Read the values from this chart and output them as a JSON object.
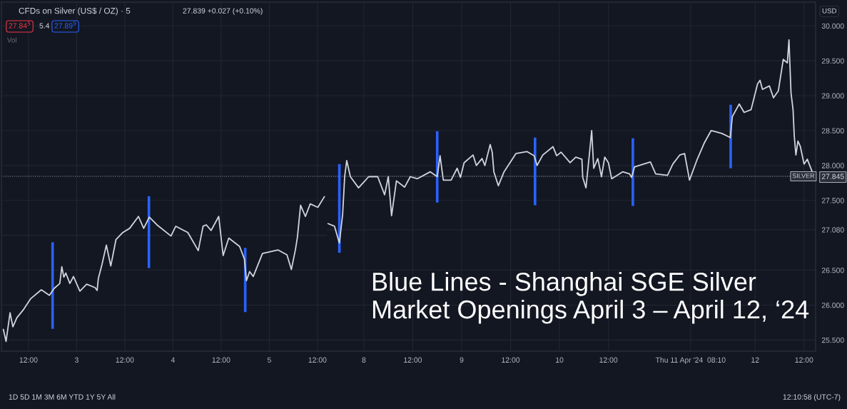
{
  "chart_data": [
    {
      "type": "line",
      "title": "CFDs on Silver (US$ / OZ) · 5",
      "annotations": [
        "27.839 +0.027 (+0.10%)",
        "27.84$^{5}$",
        "5.4",
        "27.89$^{9}$",
        "Vol",
        "1D 5D 1M 3M 6M YTD 1Y 5Y All"
      ],
      "xlim": [
        "2024-04-02T05:15",
        "2024-04-05T14:20"
      ],
      "xticks": [
        {
          "value": "2024-04-02T12:00",
          "label": "12:00"
        },
        {
          "value": "2024-04-03",
          "label": "3"
        },
        {
          "value": "2024-04-03T12:00",
          "label": "12:00"
        },
        {
          "value": "2024-04-04",
          "label": "4"
        },
        {
          "value": "2024-04-04T12:00",
          "label": "12:00"
        },
        {
          "value": "2024-04-05",
          "label": "5"
        },
        {
          "value": "2024-04-05T12:00",
          "label": "12:00"
        }
      ],
      "ylim": [
        25.34,
        30.34
      ],
      "yticks": [
        25.5,
        26,
        26.5,
        27,
        27.5,
        28,
        28.5,
        29,
        29.5,
        30
      ],
      "tick_labels": "x",
      "grid": true,
      "ref_lines": [
        {
          "axis": "y",
          "value": 27.845,
          "line_style": "dotted",
          "color": "#9598a1"
        }
      ],
      "series": [
        {
          "color": "#d1d4dc",
          "x": [
            "2024-04-02T05:42",
            "2024-04-02T06:24",
            "2024-04-02T07:24",
            "2024-04-02T08:06",
            "2024-04-02T09:06",
            "2024-04-02T10:48",
            "2024-04-02T12:30",
            "2024-04-02T15:12",
            "2024-04-02T17:12",
            "2024-04-02T18:24",
            "2024-04-02T19:48",
            "2024-04-02T20:18",
            "2024-04-02T20:48",
            "2024-04-02T21:18",
            "2024-04-02T22:18",
            "2024-04-02T23:12",
            "2024-04-03T00:48",
            "2024-04-03T02:30",
            "2024-04-03T04:36",
            "2024-04-03T05:06",
            "2024-04-03T05:24",
            "2024-04-03T06:18",
            "2024-04-03T07:24",
            "2024-04-03T08:30",
            "2024-04-03T09:48",
            "2024-04-03T11:30",
            "2024-04-03T13:12",
            "2024-04-03T15:24",
            "2024-04-03T16:42",
            "2024-04-03T18:06",
            "2024-04-03T20:00",
            "2024-04-03T23:30",
            "2024-04-04T00:42",
            "2024-04-04T03:42",
            "2024-04-04T06:18",
            "2024-04-04T07:30",
            "2024-04-04T08:18",
            "2024-04-04T09:30",
            "2024-04-04T11:24",
            "2024-04-04T12:30",
            "2024-04-04T13:54",
            "2024-04-04T16:36",
            "2024-04-04T17:48",
            "2024-04-04T18:18",
            "2024-04-04T19:06",
            "2024-04-04T20:00",
            "2024-04-04T22:18",
            "2024-04-05T02:12",
            "2024-04-05T04:24",
            "2024-04-05T05:30",
            "2024-04-05T06:30",
            "2024-04-05T07:00",
            "2024-04-05T07:48",
            "2024-04-05T09:00",
            "2024-04-05T10:12",
            "2024-04-05T12:06",
            "2024-04-05T13:48"
          ],
          "values": [
            25.66,
            25.48,
            25.89,
            25.69,
            25.82,
            25.94,
            26.09,
            26.22,
            26.14,
            26.24,
            26.31,
            26.55,
            26.4,
            26.46,
            26.31,
            26.41,
            26.2,
            26.3,
            26.25,
            26.21,
            26.38,
            26.58,
            26.86,
            26.56,
            26.94,
            27.04,
            27.1,
            27.27,
            27.1,
            27.26,
            27.15,
            26.99,
            27.13,
            27.04,
            26.78,
            27.13,
            27.15,
            27.07,
            27.27,
            26.71,
            26.96,
            26.84,
            26.66,
            26.35,
            26.48,
            26.41,
            26.74,
            26.79,
            26.72,
            26.51,
            26.79,
            26.97,
            27.43,
            27.27,
            27.45,
            27.4,
            27.56
          ]
        },
        {
          "color": "#2962ff",
          "x": [
            "2024-04-02T18:00",
            "2024-04-02T18:00"
          ],
          "values": [
            25.66,
            26.9
          ]
        },
        {
          "color": "#2962ff",
          "x": [
            "2024-04-03T18:00",
            "2024-04-03T18:00"
          ],
          "values": [
            26.53,
            27.56
          ]
        },
        {
          "color": "#2962ff",
          "x": [
            "2024-04-04T18:00",
            "2024-04-04T18:00"
          ],
          "values": [
            25.9,
            26.82
          ]
        }
      ]
    },
    {
      "type": "line",
      "annotations": [
        "Blue Lines - Shanghai SGE Silver\nMarket Openings April 3 – April 12, ‘24",
        "USD",
        "12:10:58 (UTC-7)"
      ],
      "xlim": [
        "2024-04-07T14:55",
        "2024-04-12T14:50"
      ],
      "xticks": [
        {
          "value": "2024-04-08",
          "label": "8"
        },
        {
          "value": "2024-04-08T12:00",
          "label": "12:00"
        },
        {
          "value": "2024-04-09",
          "label": "9"
        },
        {
          "value": "2024-04-09T12:00",
          "label": "12:00"
        },
        {
          "value": "2024-04-10",
          "label": "10"
        },
        {
          "value": "2024-04-10T12:00",
          "label": "12:00"
        },
        {
          "value": "2024-04-11T08:10",
          "label": "Thu 11 Apr '24  08:10"
        },
        {
          "value": "2024-04-12",
          "label": "12"
        },
        {
          "value": "2024-04-12T12:00",
          "label": "12:00"
        }
      ],
      "ylim": [
        25.34,
        30.34
      ],
      "yticks": [
        {
          "value": 25.5,
          "label": "25.500"
        },
        {
          "value": 26,
          "label": "26.000"
        },
        {
          "value": 26.5,
          "label": "26.500"
        },
        {
          "value": 27.08,
          "label": "27.080"
        },
        {
          "value": 27.5,
          "label": "27.500"
        },
        {
          "value": 27.845,
          "label": "27.845"
        },
        {
          "value": 28,
          "label": "28.000"
        },
        {
          "value": 28.5,
          "label": "28.500"
        },
        {
          "value": 29,
          "label": "29.000"
        },
        {
          "value": 29.5,
          "label": "29.500"
        },
        {
          "value": 30,
          "label": "30.000"
        }
      ],
      "grid": true,
      "ref_lines": [
        {
          "axis": "y",
          "value": 27.845,
          "label": "SILVER",
          "line_style": "dotted",
          "color": "#9598a1"
        }
      ],
      "series": [
        {
          "color": "#d1d4dc",
          "x": [
            "2024-04-07T15:06",
            "2024-04-07T16:48",
            "2024-04-07T18:00",
            "2024-04-07T18:48",
            "2024-04-07T19:18",
            "2024-04-07T19:48",
            "2024-04-07T20:42",
            "2024-04-07T22:42",
            "2024-04-08T01:12",
            "2024-04-08T03:24",
            "2024-04-08T05:06",
            "2024-04-08T06:00",
            "2024-04-08T06:48",
            "2024-04-08T08:00",
            "2024-04-08T10:00",
            "2024-04-08T11:24",
            "2024-04-08T13:06",
            "2024-04-08T16:18",
            "2024-04-08T18:00",
            "2024-04-08T18:42",
            "2024-04-08T19:30",
            "2024-04-08T21:24",
            "2024-04-08T22:54",
            "2024-04-08T23:42",
            "2024-04-09T00:36",
            "2024-04-09T02:48",
            "2024-04-09T03:36",
            "2024-04-09T05:00",
            "2024-04-09T05:42",
            "2024-04-09T07:00",
            "2024-04-09T07:30",
            "2024-04-09T07:54",
            "2024-04-09T09:00",
            "2024-04-09T10:24",
            "2024-04-09T13:18",
            "2024-04-09T16:00",
            "2024-04-09T17:48",
            "2024-04-09T18:30",
            "2024-04-09T19:54",
            "2024-04-09T22:24",
            "2024-04-09T23:18",
            "2024-04-10T00:24",
            "2024-04-10T02:36",
            "2024-04-10T04:00",
            "2024-04-10T05:30",
            "2024-04-10T05:42",
            "2024-04-10T06:30",
            "2024-04-10T07:24",
            "2024-04-10T07:54",
            "2024-04-10T08:24",
            "2024-04-10T09:24",
            "2024-04-10T10:18",
            "2024-04-10T11:06",
            "2024-04-10T12:00",
            "2024-04-10T12:48",
            "2024-04-10T15:30",
            "2024-04-10T17:12",
            "2024-04-10T17:42",
            "2024-04-10T18:24",
            "2024-04-10T22:18",
            "2024-04-10T23:36",
            "2024-04-11T02:30",
            "2024-04-11T03:48",
            "2024-04-11T05:30",
            "2024-04-11T06:42",
            "2024-04-11T07:54",
            "2024-04-11T09:48",
            "2024-04-11T11:30",
            "2024-04-11T13:12",
            "2024-04-11T15:48",
            "2024-04-11T17:54",
            "2024-04-11T18:24",
            "2024-04-11T20:06",
            "2024-04-11T21:18",
            "2024-04-11T23:00",
            "2024-04-12T00:36",
            "2024-04-12T01:12",
            "2024-04-12T01:48",
            "2024-04-12T03:30",
            "2024-04-12T04:30",
            "2024-04-12T05:42",
            "2024-04-12T06:54",
            "2024-04-12T07:54",
            "2024-04-12T08:18",
            "2024-04-12T08:48",
            "2024-04-12T09:18",
            "2024-04-12T09:36",
            "2024-04-12T10:00",
            "2024-04-12T10:30",
            "2024-04-12T11:06",
            "2024-04-12T12:00",
            "2024-04-12T12:48",
            "2024-04-12T14:00"
          ],
          "values": [
            27.17,
            27.13,
            26.89,
            27.3,
            27.84,
            28.07,
            27.84,
            27.68,
            27.84,
            27.84,
            27.58,
            27.84,
            27.28,
            27.78,
            27.69,
            27.84,
            27.81,
            27.91,
            27.84,
            28.14,
            27.79,
            27.79,
            27.96,
            27.83,
            28.04,
            28.15,
            28.0,
            28.1,
            28.0,
            28.3,
            28.19,
            27.91,
            27.71,
            27.91,
            28.17,
            28.2,
            28.14,
            28.0,
            28.15,
            28.27,
            28.14,
            28.19,
            28.04,
            28.12,
            28.09,
            27.83,
            27.68,
            28.2,
            28.5,
            27.96,
            28.1,
            27.84,
            28.12,
            28.04,
            27.81,
            27.91,
            27.88,
            27.83,
            27.98,
            28.05,
            27.88,
            27.86,
            28.02,
            28.15,
            28.17,
            27.79,
            28.09,
            28.32,
            28.5,
            28.46,
            28.4,
            28.7,
            28.88,
            28.76,
            28.8,
            29.17,
            29.22,
            29.09,
            29.14,
            28.97,
            29.07,
            29.52,
            29.47,
            29.8,
            29.04,
            28.8,
            28.42,
            28.15,
            28.35,
            28.27,
            28.02,
            28.09,
            27.91
          ]
        },
        {
          "color": "#2962ff",
          "x": [
            "2024-04-07T18:00",
            "2024-04-07T18:00"
          ],
          "values": [
            26.75,
            28.02
          ]
        },
        {
          "color": "#2962ff",
          "x": [
            "2024-04-08T18:00",
            "2024-04-08T18:00"
          ],
          "values": [
            27.47,
            28.49
          ]
        },
        {
          "color": "#2962ff",
          "x": [
            "2024-04-09T18:00",
            "2024-04-09T18:00"
          ],
          "values": [
            27.43,
            28.4
          ]
        },
        {
          "color": "#2962ff",
          "x": [
            "2024-04-10T18:00",
            "2024-04-10T18:00"
          ],
          "values": [
            27.42,
            28.39
          ]
        },
        {
          "color": "#2962ff",
          "x": [
            "2024-04-11T18:00",
            "2024-04-11T18:00"
          ],
          "values": [
            27.96,
            28.87
          ]
        }
      ]
    }
  ]
}
